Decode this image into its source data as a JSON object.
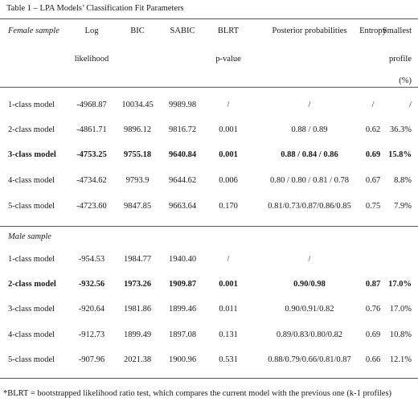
{
  "caption": "Table 1 – LPA Models’ Classification Fit Parameters",
  "header": {
    "col0": "Female sample",
    "log": [
      "Log",
      "likelihood"
    ],
    "bic": "BIC",
    "sabic": "SABIC",
    "blrt": [
      "BLRT",
      "p-value"
    ],
    "posterior": "Posterior probabilities",
    "entropy": "Entropy",
    "smallest": [
      "Smallest",
      "profile",
      "(%)"
    ]
  },
  "female_rows": [
    {
      "model": "1-class model",
      "log": "-4968.87",
      "bic": "10034.45",
      "sabic": "9989.98",
      "blrt": "/",
      "post": "/",
      "entropy": "/",
      "smallest": "/",
      "bold": false
    },
    {
      "model": "2-class model",
      "log": "-4861.71",
      "bic": "9896.12",
      "sabic": "9816.72",
      "blrt": "0.001",
      "post": "0.88 / 0.89",
      "entropy": "0.62",
      "smallest": "36.3%",
      "bold": false
    },
    {
      "model": "3-class model",
      "log": "-4753.25",
      "bic": "9755.18",
      "sabic": "9640.84",
      "blrt": "0.001",
      "post": "0.88 / 0.84 / 0.86",
      "entropy": "0.69",
      "smallest": "15.8%",
      "bold": true
    },
    {
      "model": "4-class model",
      "log": "-4734.62",
      "bic": "9793.9",
      "sabic": "9644.62",
      "blrt": "0.006",
      "post": "0.80 / 0.80 / 0.81 / 0.78",
      "entropy": "0.67",
      "smallest": "8.8%",
      "bold": false
    },
    {
      "model": "5-class model",
      "log": "-4723.60",
      "bic": "9847.85",
      "sabic": "9663.64",
      "blrt": "0.170",
      "post": "0.81/0.73/0.87/0.86/0.85",
      "entropy": "0.75",
      "smallest": "7.9%",
      "bold": false
    }
  ],
  "male_label": "Male sample",
  "male_rows": [
    {
      "model": "1-class model",
      "log": "-954.53",
      "bic": "1984.77",
      "sabic": "1940.40",
      "blrt": "/",
      "post": "/",
      "entropy": "",
      "smallest": "",
      "bold": false
    },
    {
      "model": "2-class model",
      "log": "-932.56",
      "bic": "1973.26",
      "sabic": "1909.87",
      "blrt": "0.001",
      "post": "0.90/0.98",
      "entropy": "0.87",
      "smallest": "17.0%",
      "bold": true
    },
    {
      "model": "3-class model",
      "log": "-920.64",
      "bic": "1981.86",
      "sabic": "1899.46",
      "blrt": "0.011",
      "post": "0.90/0.91/0.82",
      "entropy": "0.76",
      "smallest": "17.0%",
      "bold": false
    },
    {
      "model": "4-class model",
      "log": "-912.73",
      "bic": "1899.49",
      "sabic": "1897.08",
      "blrt": "0.131",
      "post": "0.89/0.83/0.80/0.82",
      "entropy": "0.69",
      "smallest": "10.8%",
      "bold": false
    },
    {
      "model": "5-class model",
      "log": "-907.96",
      "bic": "2021.38",
      "sabic": "1900.96",
      "blrt": "0.531",
      "post": "0.88/0.79/0.66/0.81/0.87",
      "entropy": "0.66",
      "smallest": "12.1%",
      "bold": false
    }
  ],
  "footnote": "*BLRT = bootstrapped likelihood  ratio test, which compares the current model with the previous one (k-1 profiles)"
}
